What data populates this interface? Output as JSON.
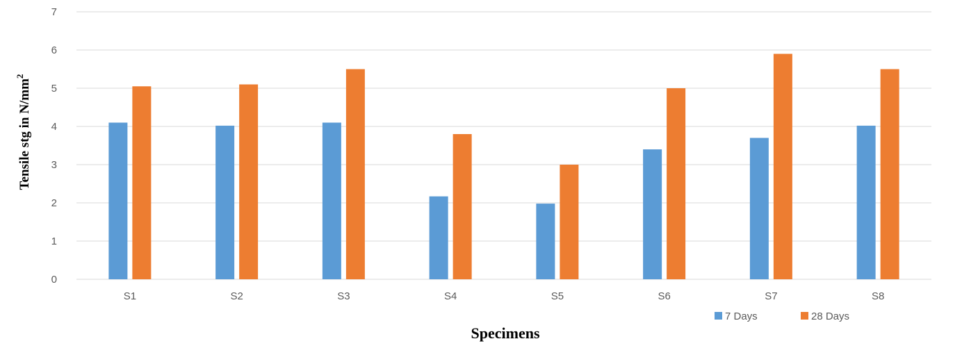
{
  "chart_data": {
    "type": "bar",
    "categories": [
      "S1",
      "S2",
      "S3",
      "S4",
      "S5",
      "S6",
      "S7",
      "S8"
    ],
    "series": [
      {
        "name": "7 Days",
        "values": [
          4.1,
          4.02,
          4.1,
          2.17,
          1.98,
          3.4,
          3.7,
          4.02
        ],
        "color": "#5B9BD5"
      },
      {
        "name": "28 Days",
        "values": [
          5.05,
          5.1,
          5.5,
          3.8,
          3.0,
          5.0,
          5.9,
          5.5
        ],
        "color": "#ED7D31"
      }
    ],
    "xlabel": "Specimens",
    "ylabel": "Tensile stg in N/mm",
    "ylabel_superscript": "2",
    "ylim": [
      0,
      7
    ],
    "yticks": [
      "0",
      "1",
      "2",
      "3",
      "4",
      "5",
      "6",
      "7"
    ],
    "grid": true,
    "legend_position": "bottom-right",
    "grid_color": "#D9D9D9"
  }
}
